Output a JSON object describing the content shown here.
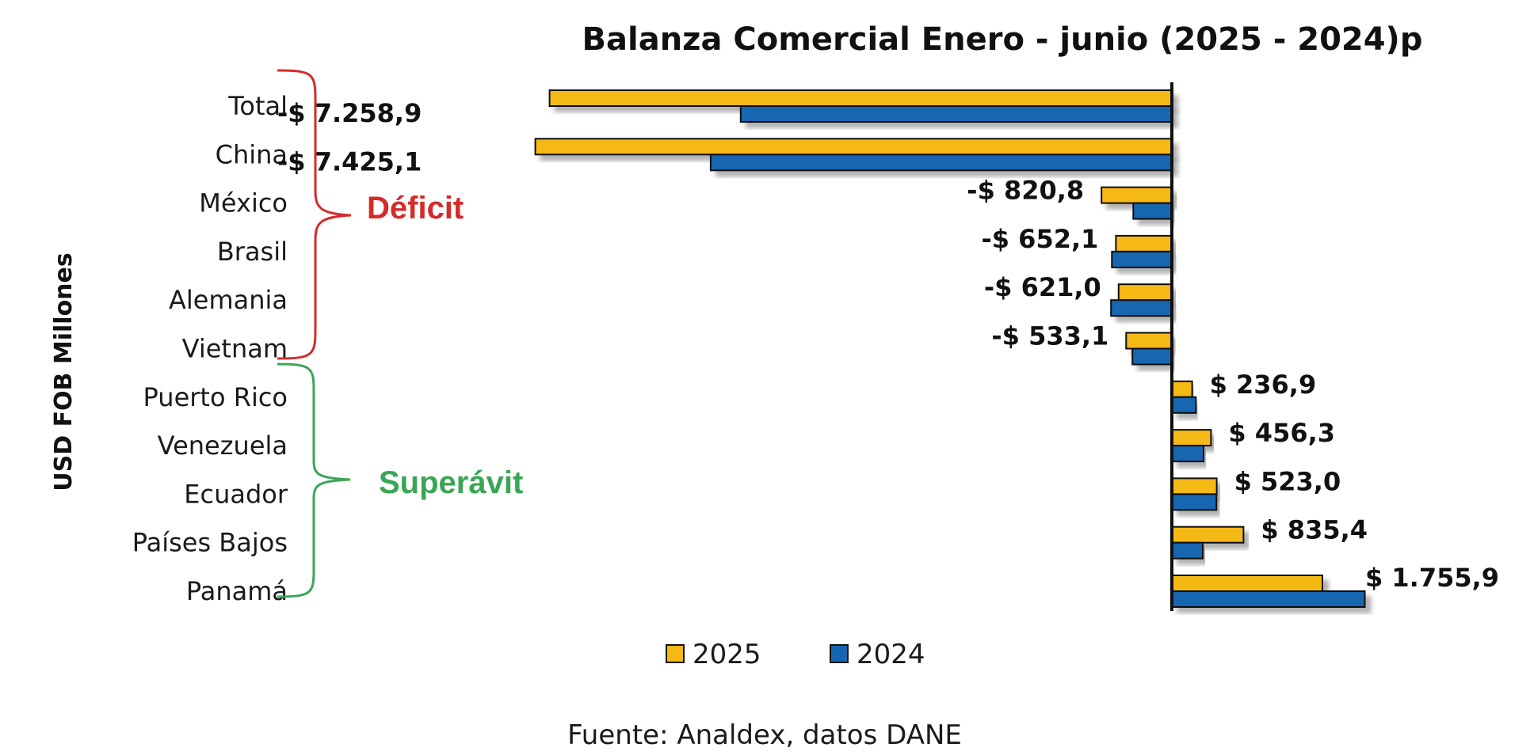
{
  "chart_data": {
    "type": "bar",
    "orientation": "horizontal",
    "title": "Balanza Comercial  Enero - junio (2025 - 2024)p",
    "ylabel": "USD FOB Millones",
    "categories": [
      "Total",
      "China",
      "México",
      "Brasil",
      "Alemania",
      "Vietnam",
      "Puerto Rico",
      "Venezuela",
      "Ecuador",
      "Países Bajos",
      "Panamá"
    ],
    "series": [
      {
        "name": "2025",
        "color": "#F5B914",
        "values": [
          -7258.9,
          -7425.1,
          -820.8,
          -652.1,
          -621.0,
          -533.1,
          236.9,
          456.3,
          523.0,
          835.4,
          1755.9
        ]
      },
      {
        "name": "2024",
        "color": "#1566B0",
        "values": [
          -5030,
          -5380,
          -450,
          -700,
          -710,
          -460,
          280,
          370,
          520,
          360,
          2250
        ]
      }
    ],
    "data_labels": [
      "-$ 7.258,9",
      "-$ 7.425,1",
      "-$ 820,8",
      "-$ 652,1",
      "-$ 621,0",
      "-$ 533,1",
      "$ 236,9",
      "$ 456,3",
      "$ 523,0",
      "$ 835,4",
      "$ 1.755,9"
    ],
    "xlim": [
      -10900,
      3100
    ],
    "legend_position": "bottom",
    "grid": false,
    "annotations": [
      {
        "text": "Déficit",
        "color": "#D42B2B"
      },
      {
        "text": "Superávit",
        "color": "#3AA655"
      }
    ],
    "source": "Fuente: Analdex, datos DANE"
  }
}
